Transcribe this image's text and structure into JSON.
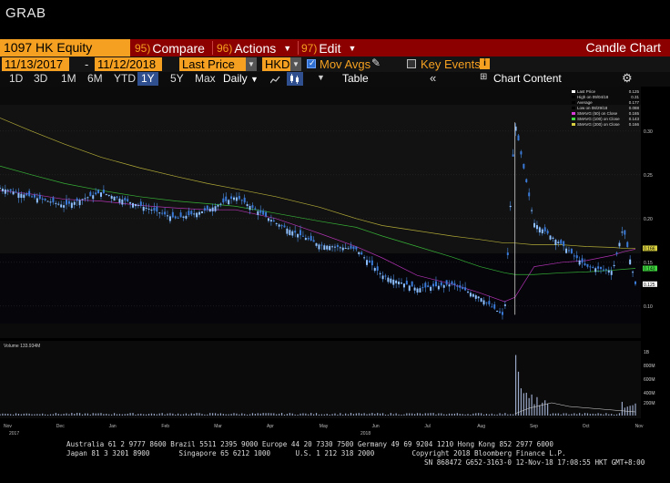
{
  "header": {
    "title": "GRAB"
  },
  "toolbar": {
    "ticker": "1097 HK Equity",
    "compare": {
      "num": "95)",
      "label": "Compare"
    },
    "actions": {
      "num": "96)",
      "label": "Actions"
    },
    "edit": {
      "num": "97)",
      "label": "Edit"
    },
    "chart_title": "Candle Chart"
  },
  "settings": {
    "start_date": "11/13/2017",
    "end_date": "11/12/2018",
    "field": "Last Price",
    "currency": "HKD",
    "mov_avgs": "Mov Avgs",
    "key_events": "Key Events"
  },
  "periods": [
    "1D",
    "3D",
    "1M",
    "6M",
    "YTD",
    "1Y",
    "5Y",
    "Max"
  ],
  "selected_period": "1Y",
  "frequency": "Daily",
  "table_label": "Table",
  "chart_content_label": "Chart Content",
  "legend": [
    {
      "label": "Last Price",
      "value": "0.125",
      "color": "#ffffff"
    },
    {
      "label": "High on 09/04/18",
      "value": "0.31",
      "color": "#000000"
    },
    {
      "label": "Average",
      "value": "0.177",
      "color": "#000000"
    },
    {
      "label": "Low on 08/29/18",
      "value": "0.088",
      "color": "#000000"
    },
    {
      "label": "SMAVG (50) on Close",
      "value": "0.165",
      "color": "#d83cd8"
    },
    {
      "label": "SMAVG (100) on Close",
      "value": "0.143",
      "color": "#40d840"
    },
    {
      "label": "SMAVG (200) on Close",
      "value": "0.166",
      "color": "#d8d040"
    }
  ],
  "y_axis": [
    "0.30",
    "0.25",
    "0.20",
    "0.15",
    "0.10"
  ],
  "price_tags": [
    {
      "label": "0.166",
      "color": "#d8d040"
    },
    {
      "label": "0.143",
      "color": "#40d840"
    },
    {
      "label": "0.125",
      "color": "#ffffff"
    }
  ],
  "volume": {
    "legend": "Volume 133.934M",
    "y_axis": [
      "1B",
      "800M",
      "600M",
      "400M",
      "200M"
    ]
  },
  "x_axis": {
    "months": [
      "Nov",
      "Dec",
      "Jan",
      "Feb",
      "Mar",
      "Apr",
      "May",
      "Jun",
      "Jul",
      "Aug",
      "Sep",
      "Oct",
      "Nov"
    ],
    "years": [
      "2017",
      "2018"
    ]
  },
  "chart_data": {
    "type": "line",
    "x": [
      "2017-11-13",
      "2017-12-01",
      "2017-12-20",
      "2018-01-10",
      "2018-02-01",
      "2018-02-22",
      "2018-03-12",
      "2018-03-28",
      "2018-04-20",
      "2018-05-15",
      "2018-06-05",
      "2018-06-20",
      "2018-07-10",
      "2018-07-30",
      "2018-08-15",
      "2018-08-29",
      "2018-09-04",
      "2018-09-15",
      "2018-10-01",
      "2018-10-15",
      "2018-10-30",
      "2018-11-05",
      "2018-11-12"
    ],
    "series": [
      {
        "name": "Last Price",
        "values": [
          0.235,
          0.225,
          0.215,
          0.23,
          0.215,
          0.2,
          0.21,
          0.225,
          0.195,
          0.17,
          0.165,
          0.135,
          0.12,
          0.125,
          0.11,
          0.088,
          0.31,
          0.195,
          0.17,
          0.145,
          0.14,
          0.19,
          0.125
        ]
      },
      {
        "name": "SMAVG (50) on Close",
        "values": [
          0.232,
          0.228,
          0.222,
          0.22,
          0.215,
          0.212,
          0.21,
          0.21,
          0.2,
          0.183,
          0.168,
          0.155,
          0.135,
          0.125,
          0.115,
          0.105,
          0.11,
          0.145,
          0.15,
          0.152,
          0.158,
          0.162,
          0.165
        ]
      },
      {
        "name": "SMAVG (100) on Close",
        "values": [
          0.26,
          0.25,
          0.24,
          0.232,
          0.225,
          0.22,
          0.217,
          0.214,
          0.206,
          0.197,
          0.19,
          0.18,
          0.168,
          0.156,
          0.145,
          0.138,
          0.136,
          0.136,
          0.138,
          0.139,
          0.141,
          0.142,
          0.143
        ]
      },
      {
        "name": "SMAVG (200) on Close",
        "values": [
          0.315,
          0.3,
          0.285,
          0.27,
          0.258,
          0.248,
          0.24,
          0.234,
          0.225,
          0.213,
          0.2,
          0.192,
          0.186,
          0.18,
          0.176,
          0.172,
          0.172,
          0.17,
          0.17,
          0.168,
          0.167,
          0.166,
          0.166
        ]
      }
    ],
    "ylim": [
      0.08,
      0.33
    ]
  }
}
